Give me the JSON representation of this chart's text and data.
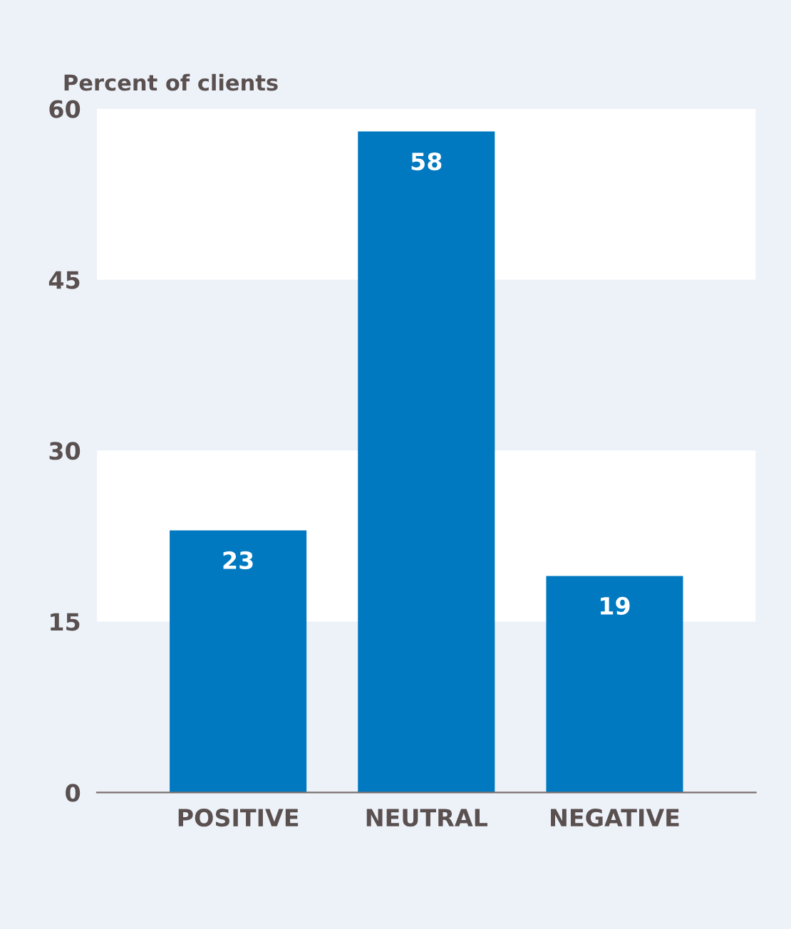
{
  "chart_data": {
    "type": "bar",
    "ylabel": "Percent of clients",
    "categories": [
      "POSITIVE",
      "NEUTRAL",
      "NEGATIVE"
    ],
    "values": [
      23,
      58,
      19
    ],
    "color": "#0079c1",
    "ylim": [
      0,
      60
    ],
    "yticks": [
      0,
      15,
      30,
      45,
      60
    ],
    "bands": [
      {
        "axis": "y",
        "from": 15,
        "to": 30,
        "color": "#ffffff"
      },
      {
        "axis": "y",
        "from": 45,
        "to": 60,
        "color": "#ffffff"
      }
    ],
    "data_labels": true
  }
}
